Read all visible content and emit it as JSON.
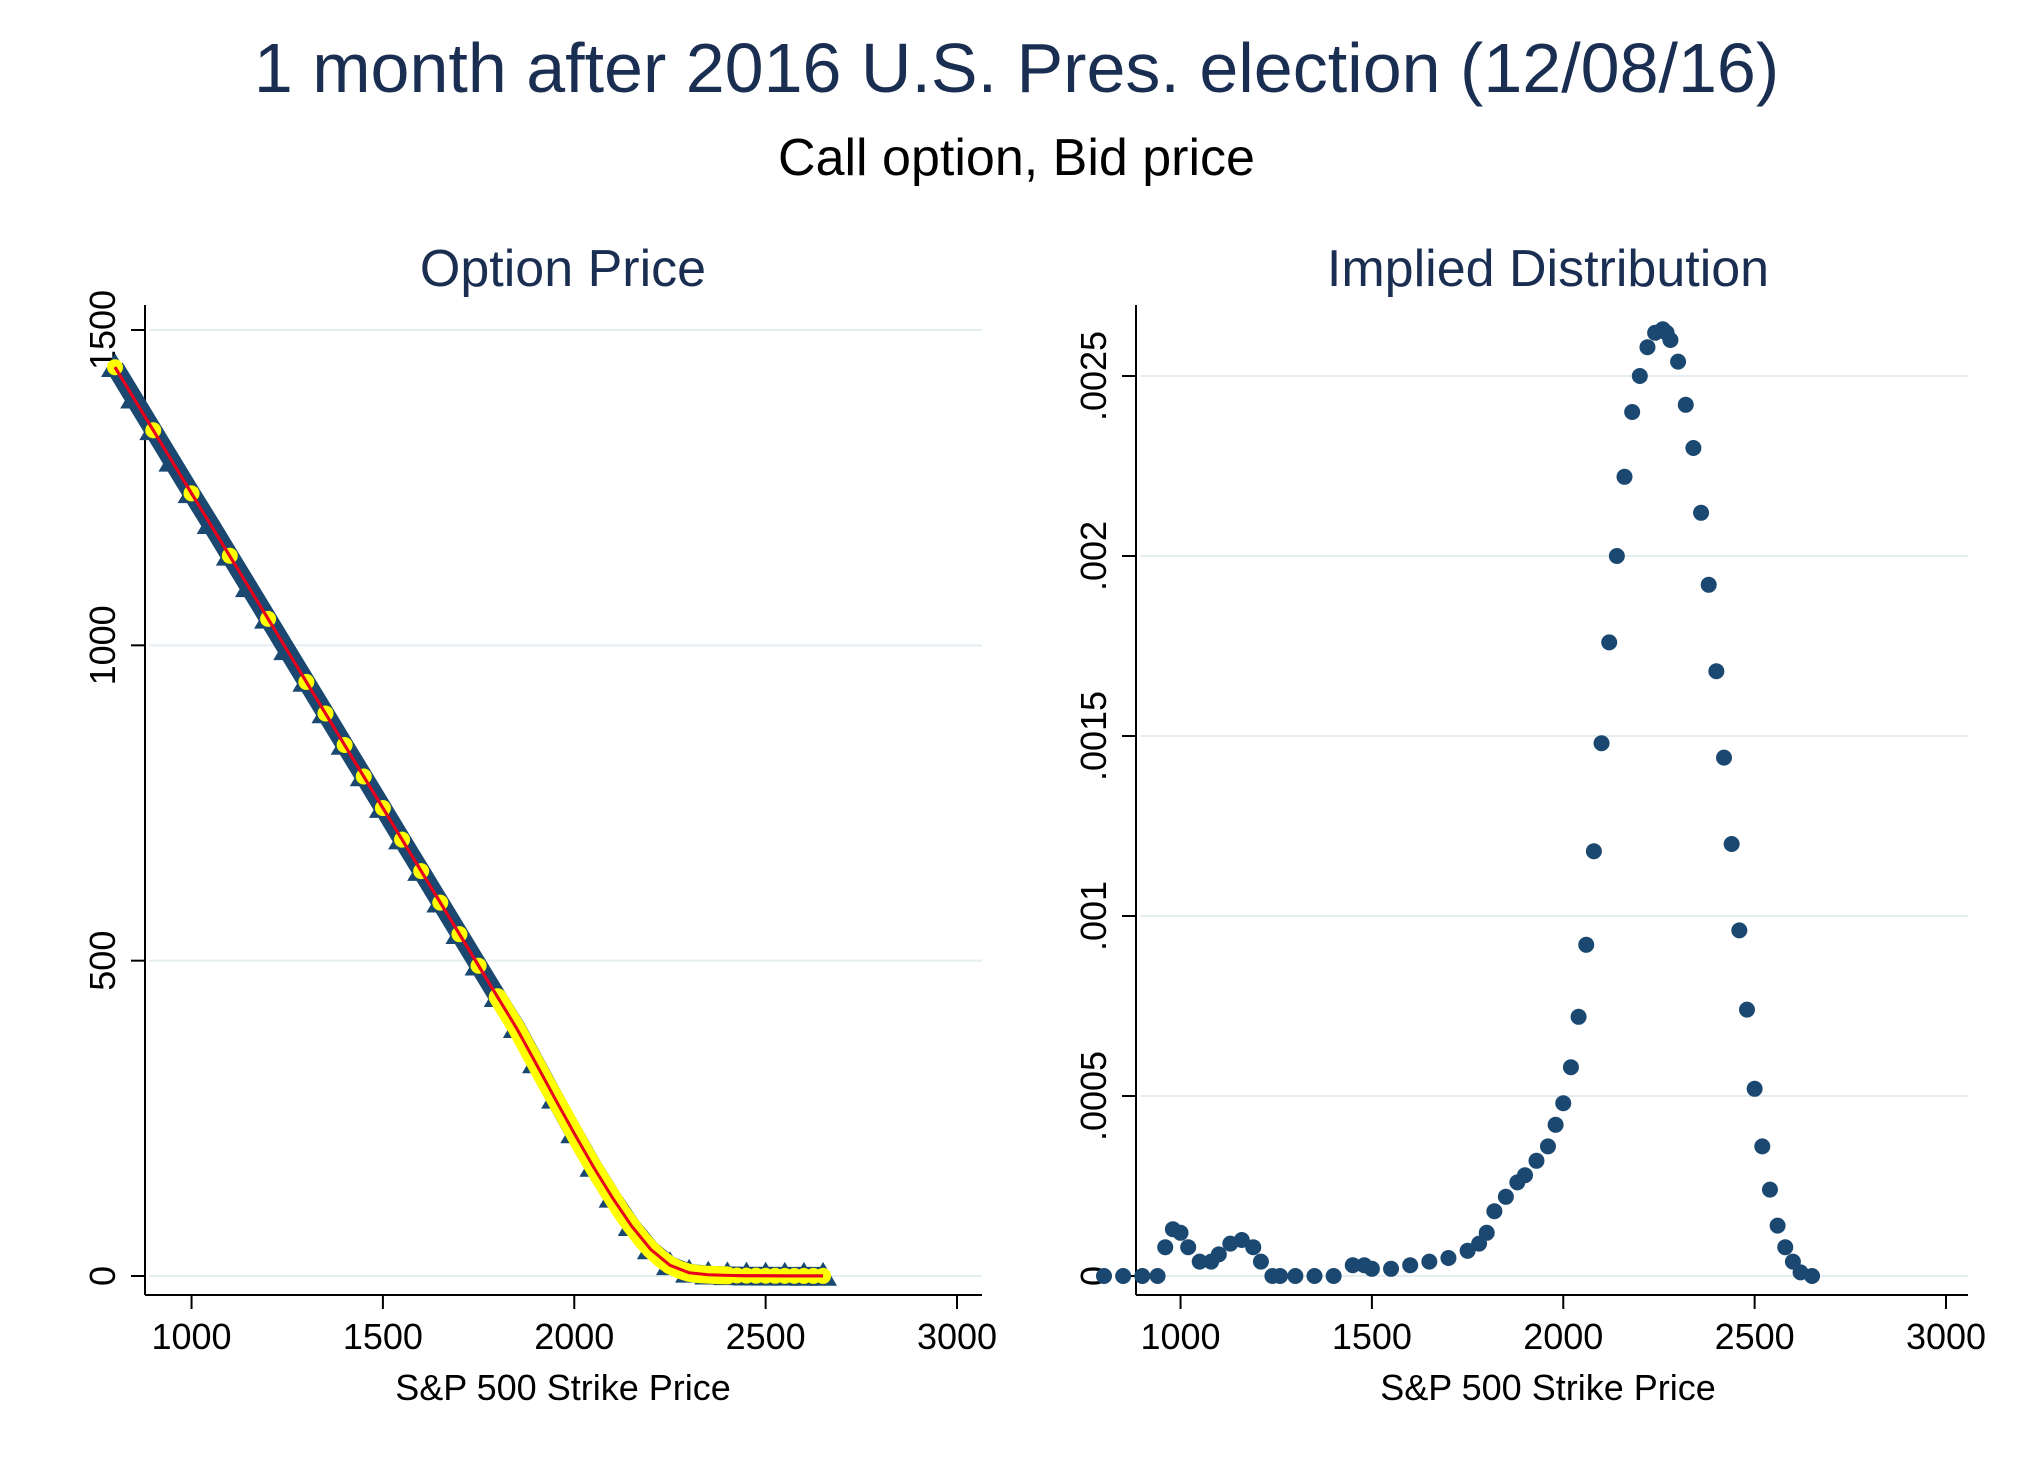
{
  "title": "1 month after 2016 U.S. Pres. election (12/08/16)",
  "subtitle": "Call option, Bid price",
  "colors": {
    "title": "#1a2e52",
    "series_navy": "#1a4870",
    "series_yellow": "#ffff00",
    "fit_line": "#e8001c",
    "grid": "#e4eef0",
    "axis": "#000000"
  },
  "chart_data": [
    {
      "type": "scatter",
      "title": "Option Price",
      "xlabel": "S&P 500 Strike Price",
      "ylabel": "",
      "xlim": [
        800,
        3000
      ],
      "ylim": [
        0,
        1500
      ],
      "xticks": [
        1000,
        1500,
        2000,
        2500,
        3000
      ],
      "xtick_labels": [
        "1000",
        "1500",
        "2000",
        "2500",
        "3000"
      ],
      "yticks": [
        0,
        500,
        1000,
        1500
      ],
      "ytick_labels": [
        "0",
        "500",
        "1000",
        "1500"
      ],
      "grid": true,
      "legend": "none",
      "series": [
        {
          "marker": "triangle",
          "color": "#1a4870",
          "x": [
            800,
            850,
            900,
            950,
            1000,
            1050,
            1100,
            1150,
            1200,
            1250,
            1300,
            1350,
            1400,
            1450,
            1500,
            1550,
            1600,
            1650,
            1700,
            1750,
            1800,
            1850,
            1900,
            1950,
            2000,
            2050,
            2100,
            2150,
            2200,
            2250,
            2300,
            2350,
            2400,
            2450,
            2500,
            2550,
            2600,
            2650
          ],
          "y": [
            1441,
            1391,
            1341,
            1291,
            1241,
            1192,
            1142,
            1092,
            1042,
            992,
            942,
            892,
            842,
            792,
            742,
            692,
            642,
            592,
            542,
            492,
            442,
            393,
            337,
            281,
            226,
            173,
            124,
            79,
            42,
            17,
            5,
            2,
            1,
            0.5,
            0.3,
            0.2,
            0.1,
            0.1
          ]
        },
        {
          "marker": "circle",
          "color": "#ffff00",
          "x": [
            800,
            900,
            1000,
            1100,
            1200,
            1300,
            1350,
            1400,
            1450,
            1500,
            1550,
            1600,
            1650,
            1700,
            1750,
            1800,
            1825,
            1850,
            1875,
            1900,
            1925,
            1950,
            1975,
            2000,
            2025,
            2050,
            2075,
            2100,
            2125,
            2150,
            2175,
            2200,
            2225,
            2250,
            2275,
            2300,
            2325,
            2350,
            2375,
            2400,
            2425,
            2450,
            2475,
            2500,
            2525,
            2550,
            2575,
            2600,
            2625,
            2650
          ],
          "y": [
            1441,
            1341,
            1241,
            1142,
            1042,
            942,
            892,
            842,
            792,
            742,
            692,
            642,
            592,
            542,
            492,
            442,
            417,
            392,
            364,
            336,
            308,
            281,
            254,
            226,
            199,
            173,
            148,
            124,
            100,
            79,
            59,
            42,
            28,
            17,
            10,
            5,
            3,
            2,
            1.5,
            1,
            0.8,
            0.6,
            0.5,
            0.4,
            0.3,
            0.2,
            0.2,
            0.1,
            0.1,
            0.1
          ]
        },
        {
          "marker": "line",
          "color": "#e8001c",
          "x": [
            800,
            1000,
            1200,
            1400,
            1600,
            1800,
            1850,
            1900,
            1950,
            2000,
            2050,
            2100,
            2150,
            2200,
            2250,
            2300,
            2350,
            2400,
            2450,
            2500,
            2550,
            2600,
            2650
          ],
          "y": [
            1441,
            1241,
            1042,
            842,
            642,
            442,
            392,
            337,
            281,
            226,
            173,
            124,
            79,
            42,
            17,
            5,
            2,
            1,
            0.5,
            0.3,
            0.2,
            0.1,
            0.1
          ]
        }
      ]
    },
    {
      "type": "scatter",
      "title": "Implied Distribution",
      "xlabel": "S&P 500 Strike Price",
      "ylabel": "",
      "xlim": [
        800,
        3000
      ],
      "ylim": [
        0,
        0.0026
      ],
      "xticks": [
        1000,
        1500,
        2000,
        2500,
        3000
      ],
      "xtick_labels": [
        "1000",
        "1500",
        "2000",
        "2500",
        "3000"
      ],
      "yticks": [
        0,
        0.0005,
        0.001,
        0.0015,
        0.002,
        0.0025
      ],
      "ytick_labels": [
        "0",
        ".0005",
        ".001",
        ".0015",
        ".002",
        ".0025"
      ],
      "grid": true,
      "legend": "none",
      "series": [
        {
          "marker": "circle",
          "color": "#1a4870",
          "x": [
            800,
            850,
            900,
            940,
            960,
            980,
            1000,
            1020,
            1050,
            1080,
            1100,
            1130,
            1160,
            1190,
            1210,
            1240,
            1260,
            1300,
            1350,
            1400,
            1450,
            1480,
            1500,
            1550,
            1600,
            1650,
            1700,
            1750,
            1780,
            1800,
            1820,
            1850,
            1880,
            1900,
            1930,
            1960,
            1980,
            2000,
            2020,
            2040,
            2060,
            2080,
            2100,
            2120,
            2140,
            2160,
            2180,
            2200,
            2220,
            2240,
            2260,
            2270,
            2280,
            2300,
            2320,
            2340,
            2360,
            2380,
            2400,
            2420,
            2440,
            2460,
            2480,
            2500,
            2520,
            2540,
            2560,
            2580,
            2600,
            2620,
            2650
          ],
          "y": [
            0,
            0,
            0,
            0,
            8e-05,
            0.00013,
            0.00012,
            8e-05,
            4e-05,
            4e-05,
            6e-05,
            9e-05,
            0.0001,
            8e-05,
            4e-05,
            0,
            0,
            0,
            0,
            0,
            3e-05,
            3e-05,
            2e-05,
            2e-05,
            3e-05,
            4e-05,
            5e-05,
            7e-05,
            9e-05,
            0.00012,
            0.00018,
            0.00022,
            0.00026,
            0.00028,
            0.00032,
            0.00036,
            0.00042,
            0.00048,
            0.00058,
            0.00072,
            0.00092,
            0.00118,
            0.00148,
            0.00176,
            0.002,
            0.00222,
            0.0024,
            0.0025,
            0.00258,
            0.00262,
            0.00263,
            0.00262,
            0.0026,
            0.00254,
            0.00242,
            0.0023,
            0.00212,
            0.00192,
            0.00168,
            0.00144,
            0.0012,
            0.00096,
            0.00074,
            0.00052,
            0.00036,
            0.00024,
            0.00014,
            8e-05,
            4e-05,
            1e-05,
            0
          ]
        }
      ]
    }
  ]
}
